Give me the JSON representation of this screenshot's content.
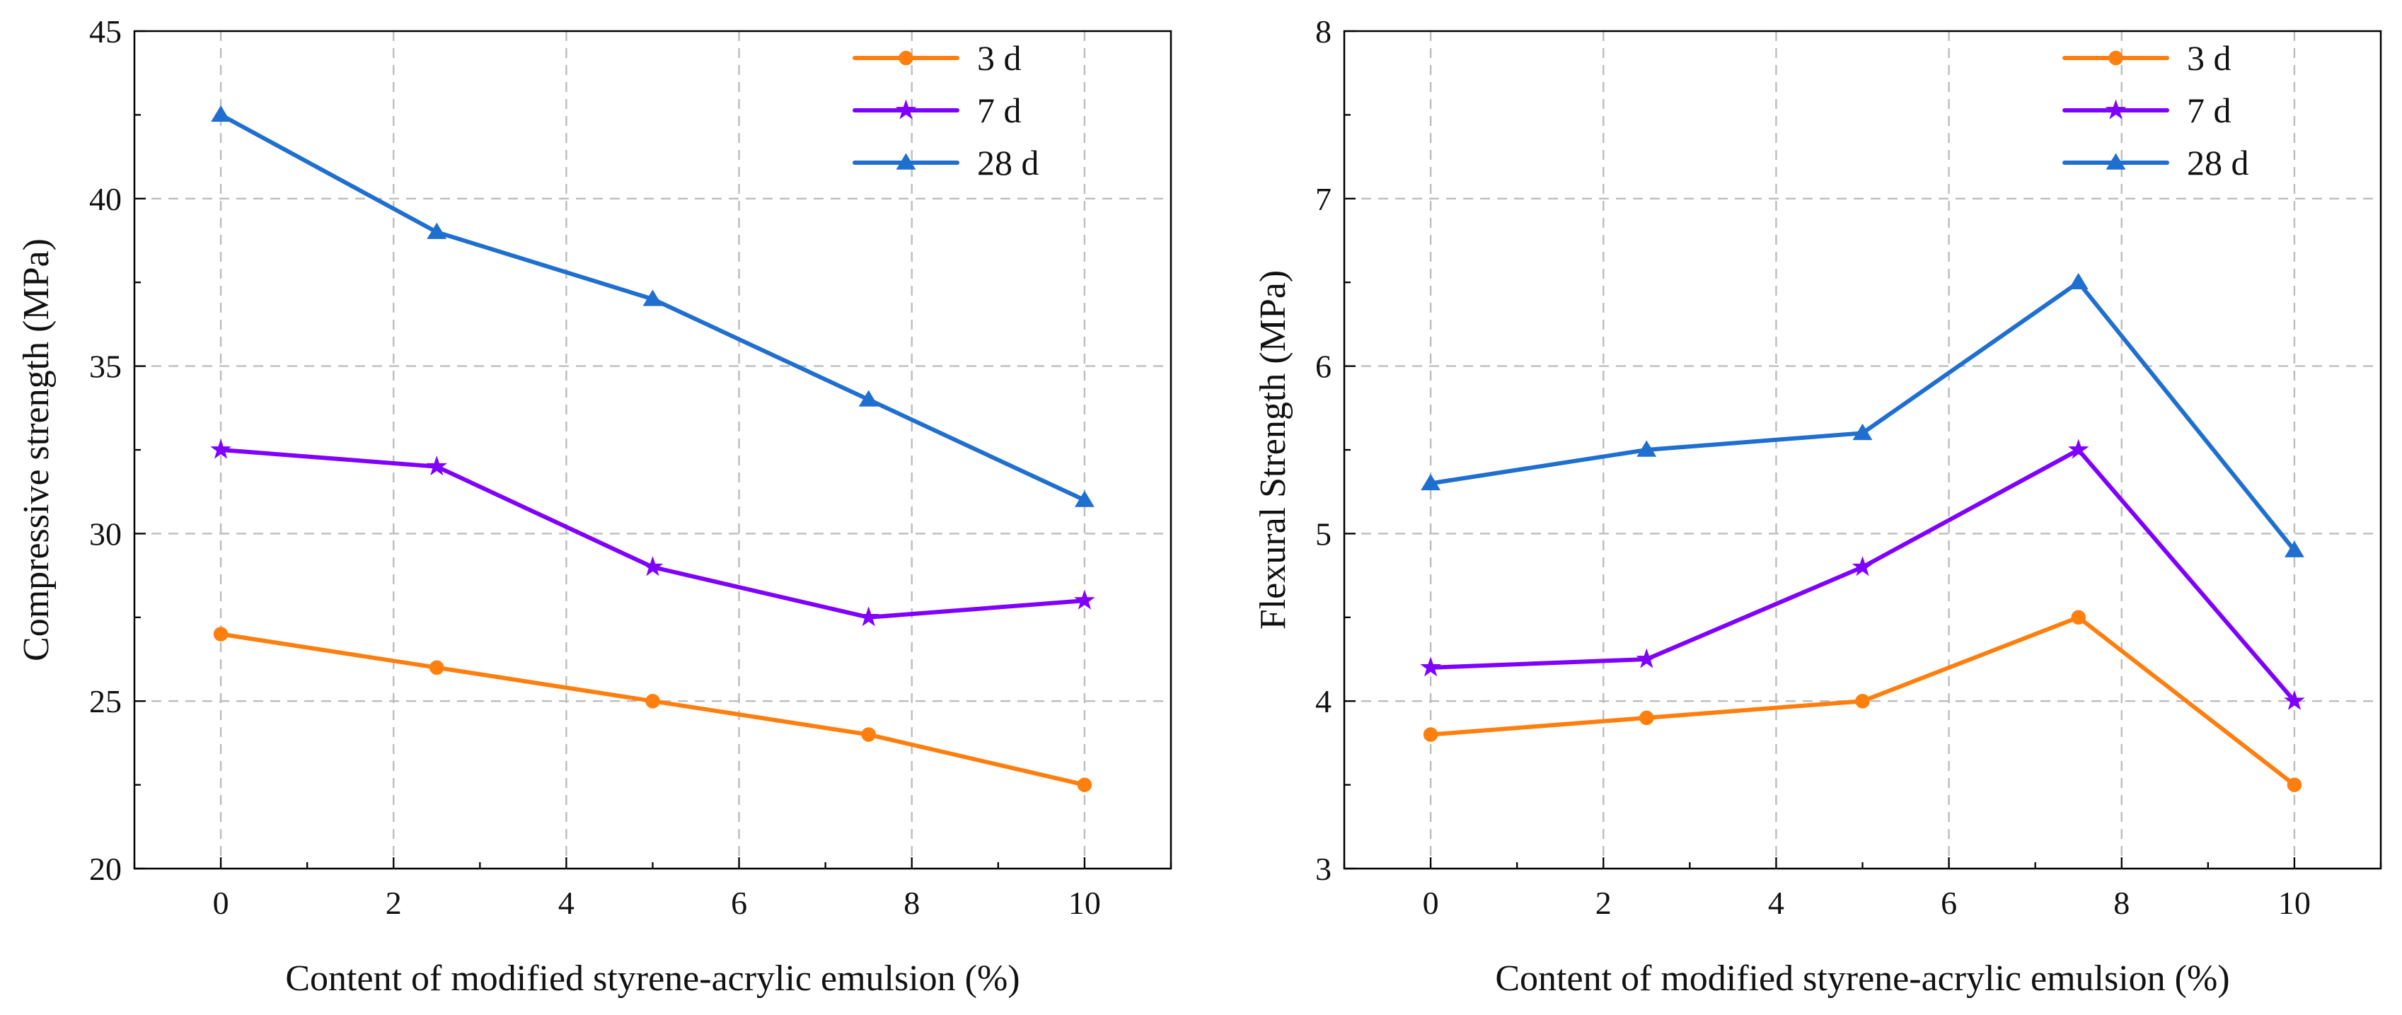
{
  "chart_data": [
    {
      "type": "line",
      "xlabel": "Content of modified styrene-acrylic emulsion (%)",
      "ylabel": "Compressive strength (MPa)",
      "xlim": [
        -1,
        11
      ],
      "ylim": [
        20,
        45
      ],
      "xticks": [
        0,
        2,
        4,
        6,
        8,
        10
      ],
      "yticks": [
        20,
        25,
        30,
        35,
        40,
        45
      ],
      "legend_position": "top-right",
      "x": [
        0,
        2.5,
        5,
        7.5,
        10
      ],
      "series": [
        {
          "name": "3 d",
          "color": "#ff7f0e",
          "marker": "circle",
          "values": [
            27,
            26,
            25,
            24,
            22.5
          ]
        },
        {
          "name": "7 d",
          "color": "#8000ff",
          "marker": "star",
          "values": [
            32.5,
            32,
            29,
            27.5,
            28
          ]
        },
        {
          "name": "28 d",
          "color": "#1f6fd1",
          "marker": "triangle",
          "values": [
            42.5,
            39,
            37,
            34,
            31
          ]
        }
      ]
    },
    {
      "type": "line",
      "xlabel": "Content of modified styrene-acrylic emulsion (%)",
      "ylabel": "Flexural Strength (MPa)",
      "xlim": [
        -1,
        11
      ],
      "ylim": [
        3,
        8
      ],
      "xticks": [
        0,
        2,
        4,
        6,
        8,
        10
      ],
      "yticks": [
        3,
        4,
        5,
        6,
        7,
        8
      ],
      "legend_position": "top-right",
      "x": [
        0,
        2.5,
        5,
        7.5,
        10
      ],
      "series": [
        {
          "name": "3 d",
          "color": "#ff7f0e",
          "marker": "circle",
          "values": [
            3.8,
            3.9,
            4.0,
            4.5,
            3.5
          ]
        },
        {
          "name": "7 d",
          "color": "#8000ff",
          "marker": "star",
          "values": [
            4.2,
            4.25,
            4.8,
            5.5,
            4.0
          ]
        },
        {
          "name": "28 d",
          "color": "#1f6fd1",
          "marker": "triangle",
          "values": [
            5.3,
            5.5,
            5.6,
            6.5,
            4.9
          ]
        }
      ]
    }
  ]
}
